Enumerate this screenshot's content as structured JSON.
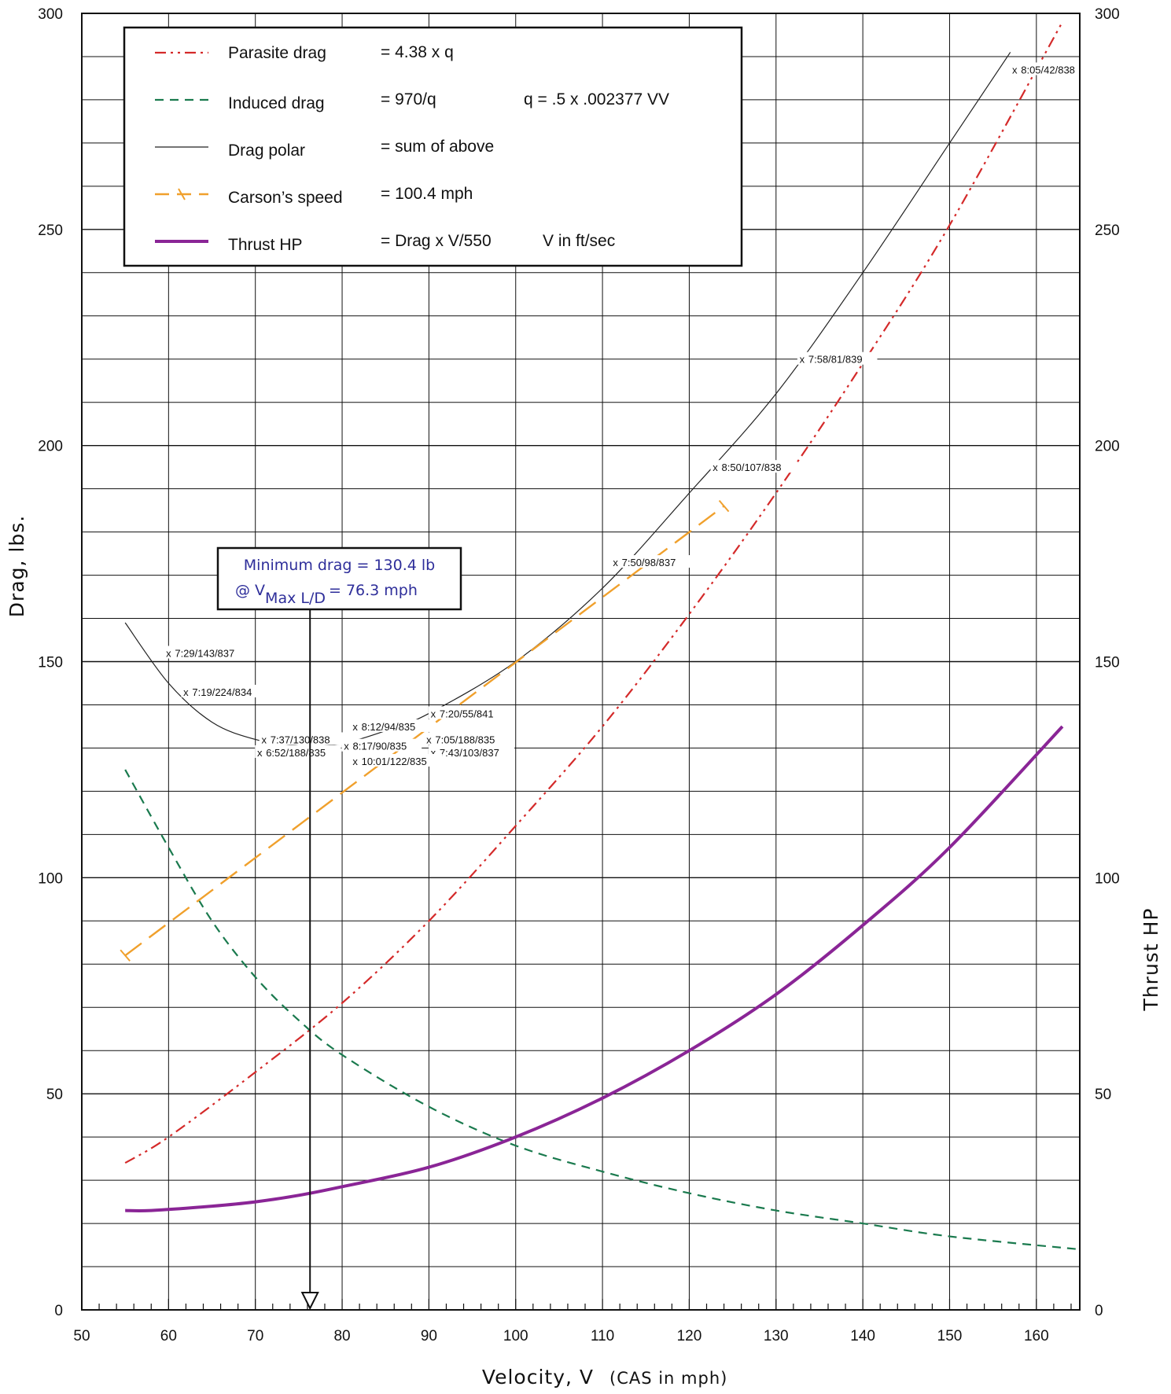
{
  "chart_data": {
    "type": "line",
    "title": "",
    "xlabel": "Velocity, V",
    "xlabel_note": "(CAS in mph)",
    "ylabel": "Drag, lbs.",
    "y2label": "Thrust HP",
    "xlim": [
      50,
      165
    ],
    "ylim": [
      0,
      300
    ],
    "y2lim": [
      0,
      300
    ],
    "x_ticks": [
      50,
      60,
      70,
      80,
      90,
      100,
      110,
      120,
      130,
      140,
      150,
      160
    ],
    "y_ticks": [
      0,
      50,
      100,
      150,
      200,
      250,
      300
    ],
    "grid": true,
    "legend_position": "top-left",
    "legend": [
      {
        "series": "parasite",
        "name": "Parasite drag",
        "formula": "= 4.38 x q",
        "extra": ""
      },
      {
        "series": "induced",
        "name": "Induced drag",
        "formula": "= 970/q",
        "extra": "q = .5 x .002377 VV"
      },
      {
        "series": "polar",
        "name": "Drag polar",
        "formula": "= sum of above",
        "extra": ""
      },
      {
        "series": "carson",
        "name": "Carson’s speed",
        "formula": "= 100.4  mph",
        "extra": ""
      },
      {
        "series": "thp",
        "name": "Thrust HP",
        "formula": "= Drag x V/550",
        "extra": "V in ft/sec"
      }
    ],
    "series": [
      {
        "id": "parasite",
        "name": "Parasite drag",
        "color": "#d42a2a",
        "style": "dashdot",
        "x": [
          55,
          60,
          70,
          80,
          90,
          100,
          110,
          120,
          130,
          140,
          150,
          163
        ],
        "y": [
          34,
          40,
          55,
          71,
          90,
          112,
          135,
          161,
          189,
          219,
          251,
          298
        ]
      },
      {
        "id": "induced",
        "name": "Induced drag",
        "color": "#1a7a4e",
        "style": "dashed",
        "x": [
          55,
          60,
          65,
          70,
          75,
          80,
          90,
          100,
          110,
          120,
          130,
          140,
          150,
          165
        ],
        "y": [
          125,
          107,
          90,
          77,
          67,
          59,
          47,
          38,
          32,
          27,
          23,
          20,
          17,
          14
        ]
      },
      {
        "id": "polar",
        "name": "Drag polar",
        "color": "#222222",
        "style": "solid",
        "x": [
          55,
          60,
          65,
          70,
          75,
          76.3,
          80,
          85,
          90,
          100,
          110,
          120,
          130,
          140,
          150,
          157
        ],
        "y": [
          159,
          145,
          136,
          132,
          130.5,
          130.4,
          131,
          134,
          138,
          150,
          167,
          189,
          212,
          240,
          270,
          291
        ]
      },
      {
        "id": "carson",
        "name": "Carson’s speed",
        "color": "#f0a02c",
        "style": "longdash",
        "x": [
          55,
          124
        ],
        "y": [
          82,
          186
        ]
      },
      {
        "id": "thp",
        "name": "Thrust HP",
        "color": "#8a2596",
        "style": "thick",
        "x": [
          55,
          58,
          65,
          70,
          75,
          80,
          90,
          100,
          110,
          120,
          130,
          140,
          150,
          163
        ],
        "y": [
          23,
          23,
          24,
          25,
          26.5,
          28.5,
          33,
          40,
          49,
          60,
          73,
          89,
          107,
          135
        ]
      }
    ],
    "data_points": [
      {
        "x": 157.5,
        "y": 287,
        "label": "8:05/42/838"
      },
      {
        "x": 133,
        "y": 220,
        "label": "7:58/81/839"
      },
      {
        "x": 123,
        "y": 195,
        "label": "8:50/107/838"
      },
      {
        "x": 111.5,
        "y": 173,
        "label": "7:50/98/837"
      },
      {
        "x": 60,
        "y": 152,
        "label": "7:29/143/837"
      },
      {
        "x": 62,
        "y": 143,
        "label": "7:19/224/834"
      },
      {
        "x": 90.5,
        "y": 138,
        "label": "7:20/55/841"
      },
      {
        "x": 81.5,
        "y": 135,
        "label": "8:12/94/835"
      },
      {
        "x": 71,
        "y": 132,
        "label": "7:37/130/838"
      },
      {
        "x": 80.5,
        "y": 130.5,
        "label": "8:17/90/835"
      },
      {
        "x": 90,
        "y": 132,
        "label": "7:05/188/835"
      },
      {
        "x": 70.5,
        "y": 129,
        "label": "6:52/188/835"
      },
      {
        "x": 90.5,
        "y": 129,
        "label": "7:43/103/837"
      },
      {
        "x": 81.5,
        "y": 127,
        "label": "10:01/122/835"
      }
    ],
    "annotation": {
      "line1": "Minimum drag = 130.4 lb",
      "line2_prefix": "@ V",
      "line2_sub": "Max L/D",
      "line2_suffix": "= 76.3 mph",
      "x": 76.3
    }
  }
}
